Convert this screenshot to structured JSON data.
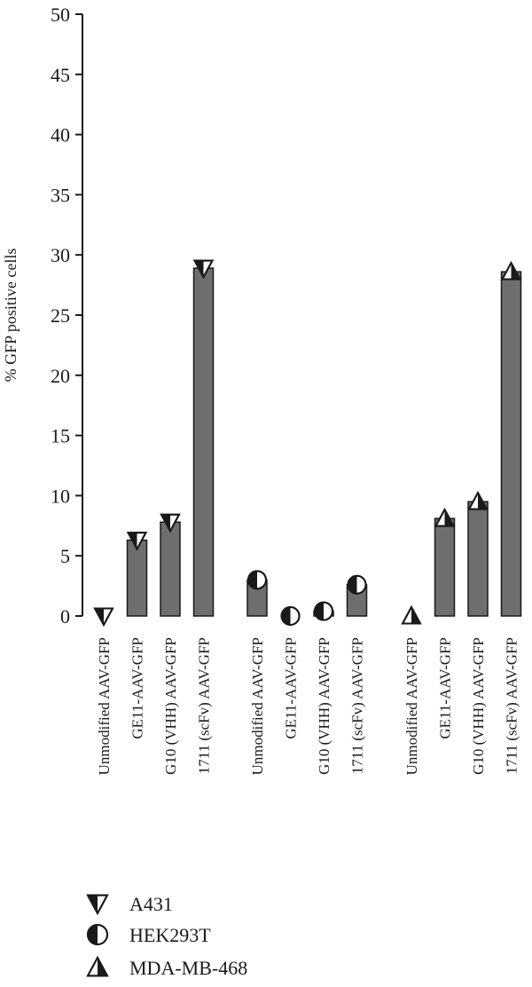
{
  "chart_data": {
    "type": "bar",
    "title": "",
    "xlabel": "",
    "ylabel": "% GFP positive cells",
    "ylim": [
      0,
      50
    ],
    "yticks": [
      0,
      5,
      10,
      15,
      20,
      25,
      30,
      35,
      40,
      45,
      50
    ],
    "grid": false,
    "legend_position": "bottom-left",
    "bar_color": "#6e6e6e",
    "groups": [
      {
        "series": "A431",
        "marker": "triangle-down-half",
        "categories": [
          "Unmodified AAV-GFP",
          "GE11-AAV-GFP",
          "G10 (VHH) AAV-GFP",
          "1711 (scFv) AAV-GFP"
        ],
        "values": [
          0,
          6.3,
          7.8,
          28.9
        ]
      },
      {
        "series": "HEK293T",
        "marker": "circle-half",
        "categories": [
          "Unmodified AAV-GFP",
          "GE11-AAV-GFP",
          "G10 (VHH) AAV-GFP",
          "1711 (scFv) AAV-GFP"
        ],
        "values": [
          3.0,
          0,
          0.4,
          2.6
        ]
      },
      {
        "series": "MDA-MB-468",
        "marker": "triangle-up-half",
        "categories": [
          "Unmodified AAV-GFP",
          "GE11-AAV-GFP",
          "G10 (VHH) AAV-GFP",
          "1711 (scFv) AAV-GFP"
        ],
        "values": [
          0,
          8.1,
          9.5,
          28.6
        ]
      }
    ]
  },
  "legend": {
    "items": [
      {
        "label": "A431",
        "marker": "triangle-down-half"
      },
      {
        "label": "HEK293T",
        "marker": "circle-half"
      },
      {
        "label": "MDA-MB-468",
        "marker": "triangle-up-half"
      }
    ]
  }
}
